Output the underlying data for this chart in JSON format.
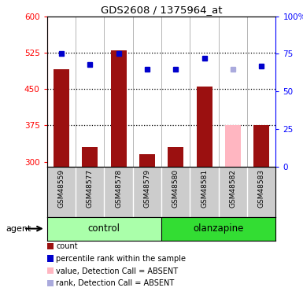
{
  "title": "GDS2608 / 1375964_at",
  "samples": [
    "GSM48559",
    "GSM48577",
    "GSM48578",
    "GSM48579",
    "GSM48580",
    "GSM48581",
    "GSM48582",
    "GSM48583"
  ],
  "bar_values": [
    490,
    330,
    530,
    315,
    330,
    455,
    375,
    375
  ],
  "bar_colors": [
    "#9B1010",
    "#9B1010",
    "#9B1010",
    "#9B1010",
    "#9B1010",
    "#9B1010",
    "#FFB6C1",
    "#9B1010"
  ],
  "rank_values": [
    75,
    68,
    75,
    65,
    65,
    72,
    65,
    67
  ],
  "rank_colors": [
    "#0000CC",
    "#0000CC",
    "#0000CC",
    "#0000CC",
    "#0000CC",
    "#0000CC",
    "#AAAADD",
    "#0000CC"
  ],
  "ylim_left": [
    290,
    600
  ],
  "ylim_right": [
    0,
    100
  ],
  "yticks_left": [
    300,
    375,
    450,
    525,
    600
  ],
  "yticks_right": [
    0,
    25,
    50,
    75,
    100
  ],
  "ytick_labels_right": [
    "0",
    "25",
    "50",
    "75",
    "100%"
  ],
  "hlines": [
    375,
    450,
    525
  ],
  "control_group": [
    0,
    1,
    2,
    3
  ],
  "olanzapine_group": [
    4,
    5,
    6,
    7
  ],
  "group_labels": [
    "control",
    "olanzapine"
  ],
  "agent_label": "agent",
  "bar_width": 0.55,
  "legend_items": [
    {
      "label": "count",
      "color": "#9B1010"
    },
    {
      "label": "percentile rank within the sample",
      "color": "#0000CC"
    },
    {
      "label": "value, Detection Call = ABSENT",
      "color": "#FFB6C1"
    },
    {
      "label": "rank, Detection Call = ABSENT",
      "color": "#AAAADD"
    }
  ],
  "background_color": "#FFFFFF",
  "control_bg_light": "#BBFFBB",
  "control_bg_dark": "#44DD44",
  "olanzapine_bg": "#22CC22",
  "sample_bg": "#CCCCCC"
}
